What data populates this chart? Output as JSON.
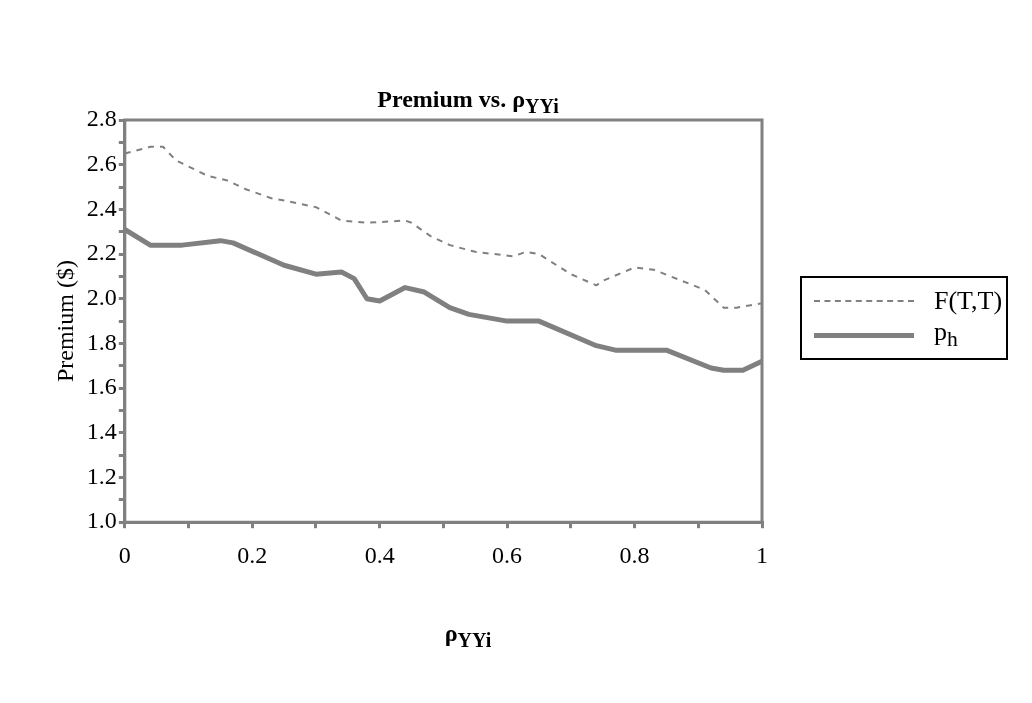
{
  "chart_data": {
    "type": "line",
    "title": "Premium vs. ρ$_{YYi}$",
    "xlabel": "ρ$_{YYi}$",
    "ylabel": "Premium ($)",
    "xlim": [
      0,
      1
    ],
    "ylim": [
      1.0,
      2.8
    ],
    "xticks": [
      0,
      {
        "value": 0.1,
        "label": null
      },
      0.2,
      {
        "value": 0.3,
        "label": null
      },
      0.4,
      {
        "value": 0.5,
        "label": null
      },
      0.6,
      {
        "value": 0.7,
        "label": null
      },
      0.8,
      {
        "value": 0.9,
        "label": null
      },
      1
    ],
    "yticks": [
      {
        "value": 1.0,
        "label": "1.0"
      },
      {
        "value": 1.1,
        "label": null
      },
      {
        "value": 1.2,
        "label": "1.2"
      },
      {
        "value": 1.3,
        "label": null
      },
      {
        "value": 1.4,
        "label": "1.4"
      },
      {
        "value": 1.5,
        "label": null
      },
      {
        "value": 1.6,
        "label": "1.6"
      },
      {
        "value": 1.7,
        "label": null
      },
      {
        "value": 1.8,
        "label": "1.8"
      },
      {
        "value": 1.9,
        "label": null
      },
      {
        "value": 2.0,
        "label": "2.0"
      },
      {
        "value": 2.1,
        "label": null
      },
      {
        "value": 2.2,
        "label": "2.2"
      },
      {
        "value": 2.3,
        "label": null
      },
      {
        "value": 2.4,
        "label": "2.4"
      },
      {
        "value": 2.5,
        "label": null
      },
      {
        "value": 2.6,
        "label": "2.6"
      },
      {
        "value": 2.7,
        "label": null
      },
      {
        "value": 2.8,
        "label": "2.8"
      }
    ],
    "legend": "right",
    "marker": "none",
    "series": [
      {
        "name": "F(T,T)",
        "color": "#808080",
        "line_style": "dashed",
        "x": [
          0,
          0.04,
          0.06,
          0.08,
          0.13,
          0.16,
          0.19,
          0.23,
          0.25,
          0.3,
          0.34,
          0.38,
          0.44,
          0.45,
          0.48,
          0.51,
          0.55,
          0.61,
          0.63,
          0.65,
          0.7,
          0.74,
          0.75,
          0.8,
          0.83,
          0.91,
          0.94,
          0.96,
          0.98,
          1
        ],
        "values": [
          2.65,
          2.68,
          2.68,
          2.62,
          2.55,
          2.53,
          2.49,
          2.45,
          2.44,
          2.41,
          2.35,
          2.34,
          2.35,
          2.34,
          2.28,
          2.24,
          2.21,
          2.19,
          2.21,
          2.2,
          2.11,
          2.06,
          2.08,
          2.14,
          2.13,
          2.04,
          1.96,
          1.96,
          1.97,
          1.98
        ]
      },
      {
        "name": "p$_{h}$",
        "color": "#808080",
        "line_style": "solid",
        "x": [
          0,
          0.04,
          0.09,
          0.15,
          0.17,
          0.25,
          0.3,
          0.34,
          0.36,
          0.38,
          0.4,
          0.44,
          0.47,
          0.51,
          0.54,
          0.6,
          0.65,
          0.74,
          0.77,
          0.85,
          0.92,
          0.94,
          0.97,
          1
        ],
        "values": [
          2.31,
          2.24,
          2.24,
          2.26,
          2.25,
          2.15,
          2.11,
          2.12,
          2.09,
          2.0,
          1.99,
          2.05,
          2.03,
          1.96,
          1.93,
          1.9,
          1.9,
          1.79,
          1.77,
          1.77,
          1.69,
          1.68,
          1.68,
          1.72
        ]
      }
    ]
  }
}
